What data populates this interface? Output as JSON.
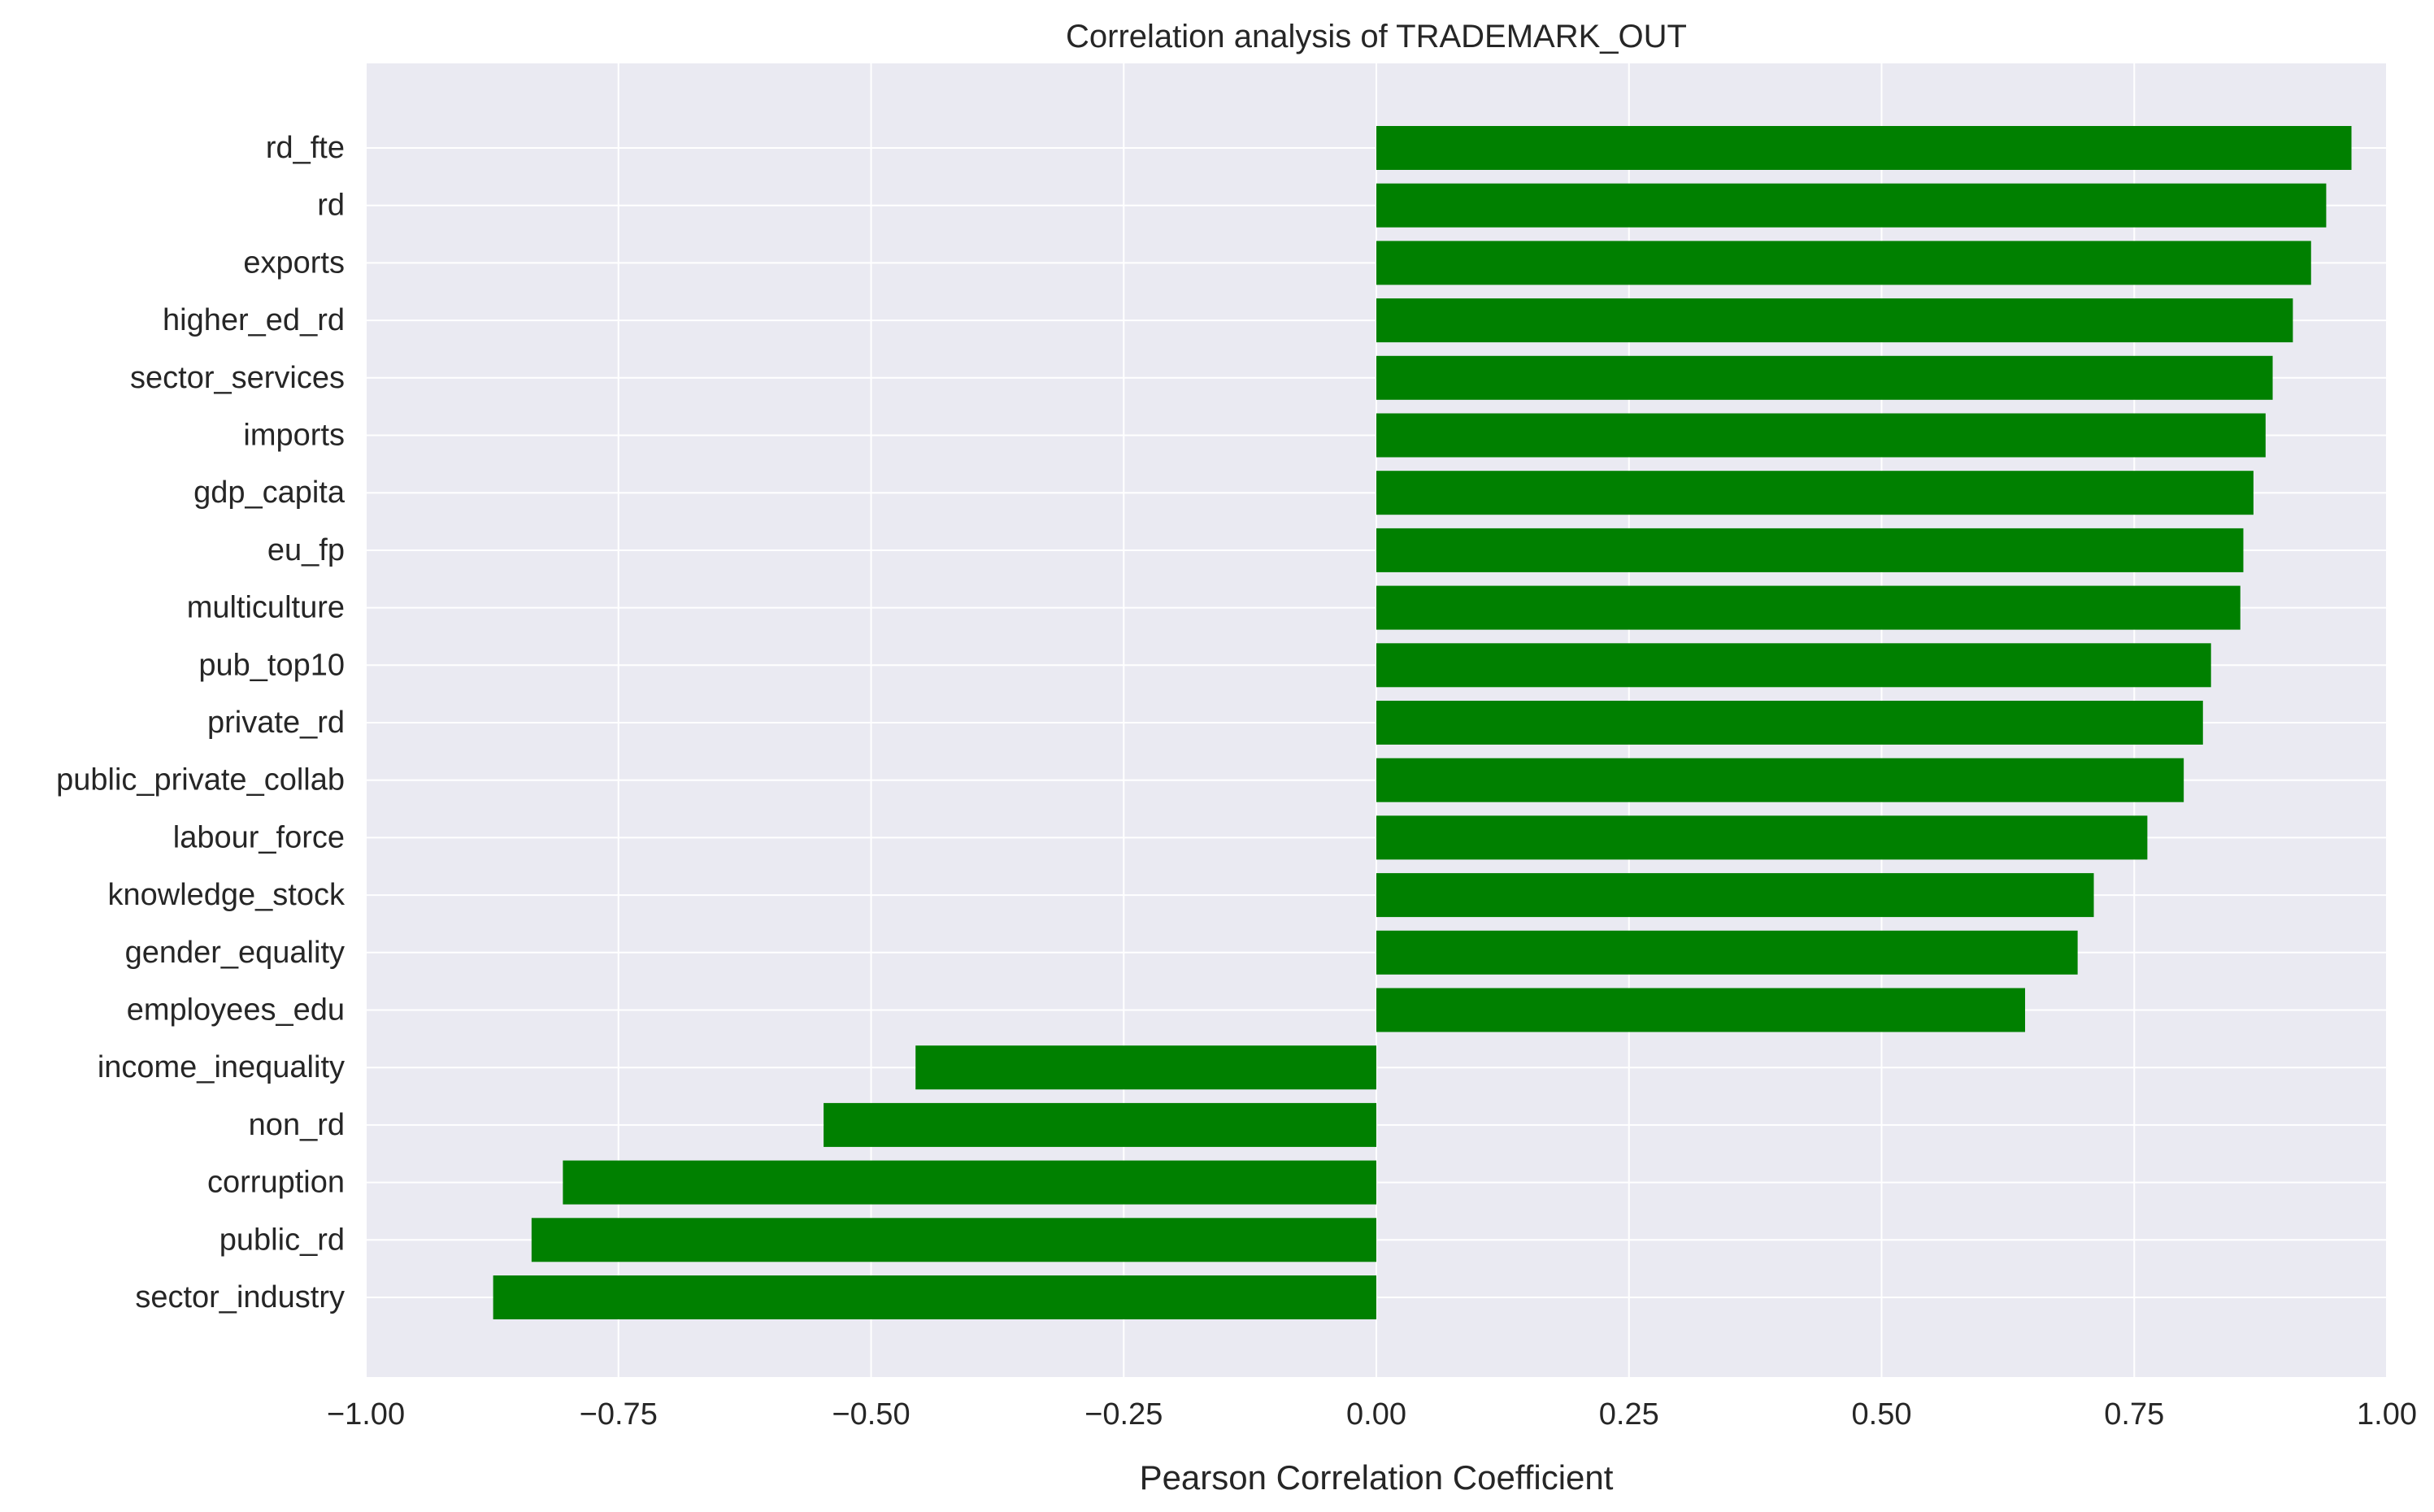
{
  "chart_data": {
    "type": "bar",
    "orientation": "horizontal",
    "title": "Correlation analysis of TRADEMARK_OUT",
    "xlabel": "Pearson Correlation Coefficient",
    "ylabel": "",
    "xlim": [
      -1.0,
      1.0
    ],
    "xticks": [
      -1.0,
      -0.75,
      -0.5,
      -0.25,
      0.0,
      0.25,
      0.5,
      0.75,
      1.0
    ],
    "xtick_labels": [
      "−1.00",
      "−0.75",
      "−0.50",
      "−0.25",
      "0.00",
      "0.25",
      "0.50",
      "0.75",
      "1.00"
    ],
    "grid": true,
    "legend": "none",
    "bar_color": "#008000",
    "background_color": "#EAEAF2",
    "grid_color": "#FFFFFF",
    "categories": [
      "rd_fte",
      "rd",
      "exports",
      "higher_ed_rd",
      "sector_services",
      "imports",
      "gdp_capita",
      "eu_fp",
      "multiculture",
      "pub_top10",
      "private_rd",
      "public_private_collab",
      "labour_force",
      "knowledge_stock",
      "gender_equality",
      "employees_edu",
      "income_inequality",
      "non_rd",
      "corruption",
      "public_rd",
      "sector_industry"
    ],
    "values": [
      0.965,
      0.94,
      0.925,
      0.907,
      0.887,
      0.88,
      0.868,
      0.858,
      0.855,
      0.826,
      0.818,
      0.799,
      0.763,
      0.71,
      0.694,
      0.642,
      -0.456,
      -0.547,
      -0.805,
      -0.836,
      -0.874
    ]
  }
}
